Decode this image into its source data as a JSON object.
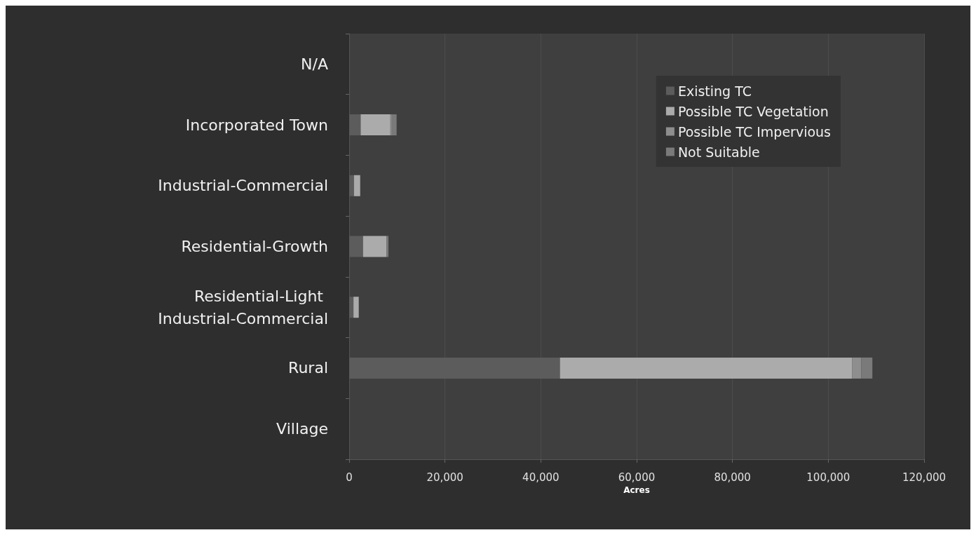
{
  "chart_data": {
    "type": "bar",
    "orientation": "horizontal",
    "stacked": true,
    "xlabel": "Acres",
    "categories": [
      "N/A",
      "Incorporated Town",
      "Industrial-Commercial",
      "Residential-Growth",
      "Residential-Light Industrial-Commercial",
      "Rural",
      "Village"
    ],
    "series": [
      {
        "name": "Existing TC",
        "color": "#5c5c5c",
        "values": [
          0,
          2400,
          1000,
          2900,
          900,
          44000,
          0
        ]
      },
      {
        "name": "Possible TC Vegetation",
        "color": "#ababab",
        "values": [
          0,
          6200,
          1300,
          4900,
          1100,
          61000,
          0
        ]
      },
      {
        "name": "Possible TC Impervious",
        "color": "#8e8e8e",
        "values": [
          0,
          300,
          0,
          0,
          0,
          1900,
          0
        ]
      },
      {
        "name": "Not Suitable",
        "color": "#7a7a7a",
        "values": [
          0,
          1000,
          0,
          400,
          0,
          2300,
          0
        ]
      }
    ],
    "xlim": [
      0,
      120000
    ],
    "xticks": [
      0,
      {
        "value": 20000,
        "label": "20,000"
      },
      {
        "value": 40000,
        "label": "40,000"
      },
      {
        "value": 60000,
        "label": "60,000"
      },
      {
        "value": 80000,
        "label": "80,000"
      },
      {
        "value": 100000,
        "label": "100,000"
      },
      {
        "value": 120000,
        "label": "120,000"
      }
    ],
    "grid": "x",
    "legend": "top right"
  }
}
